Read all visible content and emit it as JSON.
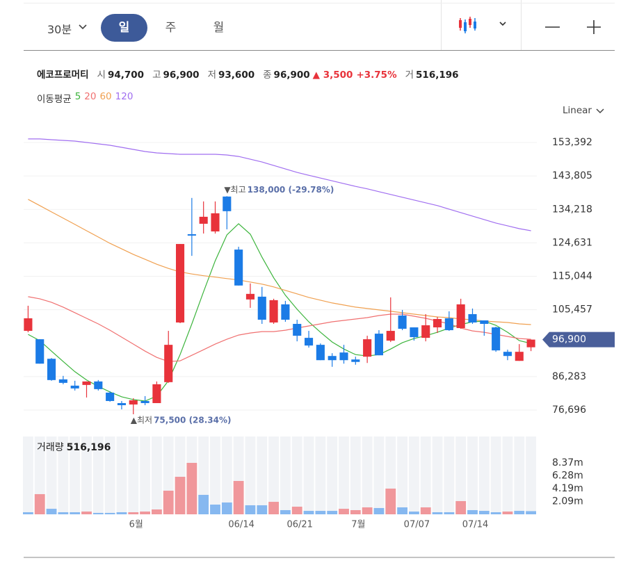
{
  "toolbar": {
    "interval": "30분",
    "tabs": [
      "일",
      "주",
      "월"
    ],
    "active_tab": 0
  },
  "quote": {
    "name": "에코프로머티",
    "items": [
      {
        "label": "시",
        "value": "94,700"
      },
      {
        "label": "고",
        "value": "96,900"
      },
      {
        "label": "저",
        "value": "93,600"
      },
      {
        "label": "종",
        "value": "96,900"
      }
    ],
    "change": "▲ 3,500",
    "change_rate": "+3.75%",
    "volume_label": "거",
    "volume": "516,196"
  },
  "ma_label": "이동평균",
  "scale_mode": "Linear",
  "chart_data": [
    {
      "type": "candlestick",
      "categories": [
        null,
        null,
        null,
        null,
        null,
        null,
        null,
        null,
        null,
        "6월",
        null,
        null,
        null,
        null,
        null,
        null,
        null,
        null,
        "06/14",
        null,
        null,
        null,
        null,
        "06/21",
        null,
        null,
        null,
        null,
        "7월",
        null,
        null,
        null,
        null,
        "07/07",
        null,
        null,
        null,
        null,
        "07/14",
        null,
        null,
        null,
        null,
        null
      ],
      "candles": {
        "up_color": "#e8333b",
        "down_color": "#1b7be6",
        "open": [
          99400,
          97000,
          91400,
          85500,
          83700,
          83900,
          84900,
          81700,
          78700,
          78300,
          79300,
          78700,
          84700,
          101800,
          127100,
          130100,
          127900,
          137900,
          122700,
          108400,
          109200,
          101800,
          107000,
          101400,
          97400,
          95400,
          92200,
          93200,
          91200,
          92000,
          98600,
          96600,
          103800,
          100400,
          97400,
          100400,
          103000,
          100200,
          104200,
          102400,
          100400,
          93400,
          90800,
          94700
        ],
        "high": [
          106600,
          97000,
          91600,
          86500,
          85100,
          84900,
          85300,
          82100,
          79300,
          80100,
          80700,
          84900,
          99400,
          124300,
          137500,
          136500,
          136500,
          138000,
          123500,
          113000,
          112000,
          108600,
          108000,
          102600,
          99400,
          95800,
          93000,
          95400,
          92000,
          98000,
          99600,
          109000,
          105400,
          100400,
          104200,
          103400,
          105000,
          108600,
          105800,
          102400,
          100600,
          94000,
          95600,
          96900
        ],
        "low": [
          99000,
          90000,
          85100,
          84100,
          82300,
          80300,
          82300,
          79100,
          76900,
          75500,
          78100,
          78700,
          84500,
          101600,
          120900,
          127300,
          127300,
          128500,
          112400,
          106000,
          101400,
          101400,
          102000,
          96400,
          94600,
          91000,
          89100,
          90000,
          89700,
          90200,
          92400,
          96200,
          99600,
          96600,
          96400,
          98800,
          99400,
          100000,
          101400,
          98000,
          93400,
          91000,
          90800,
          93600
        ],
        "close": [
          103000,
          90000,
          85300,
          84500,
          82900,
          84900,
          82700,
          79300,
          78100,
          79500,
          78700,
          84100,
          95400,
          124300,
          126700,
          132100,
          133100,
          133700,
          112400,
          110000,
          102600,
          108200,
          102600,
          98000,
          95200,
          91000,
          91000,
          91000,
          90500,
          97000,
          92400,
          99400,
          100000,
          97600,
          101000,
          102800,
          99600,
          107000,
          101800,
          101400,
          93800,
          92200,
          93400,
          96900
        ]
      },
      "series": [
        {
          "name": "5",
          "color": "#3cb43c",
          "values": [
            98400,
            96600,
            93600,
            90600,
            87700,
            85300,
            83500,
            81900,
            80500,
            79700,
            79300,
            80700,
            85100,
            92600,
            101400,
            110600,
            119500,
            126900,
            130100,
            127100,
            120500,
            114600,
            109600,
            105600,
            102000,
            99000,
            96200,
            94200,
            92600,
            92200,
            92600,
            94200,
            96000,
            97200,
            98000,
            99000,
            100200,
            101200,
            102000,
            102200,
            101000,
            99000,
            96600,
            95800
          ]
        },
        {
          "name": "20",
          "color": "#f07070",
          "values": [
            109200,
            108600,
            107600,
            106200,
            104600,
            103000,
            101400,
            99600,
            97600,
            95600,
            93600,
            91800,
            90600,
            90800,
            92400,
            94000,
            95600,
            97000,
            98200,
            98800,
            99200,
            99200,
            99600,
            100200,
            100800,
            101400,
            102000,
            102400,
            102800,
            103200,
            103800,
            104200,
            104200,
            103600,
            103000,
            102200,
            101400,
            100200,
            99400,
            99000,
            98400,
            97800,
            97200,
            97000
          ]
        },
        {
          "name": "60",
          "color": "#f0a050",
          "values": [
            137100,
            135300,
            133500,
            131700,
            129900,
            128100,
            126300,
            124500,
            122900,
            121300,
            119900,
            118500,
            117300,
            116300,
            115700,
            115200,
            114800,
            114400,
            114000,
            113400,
            112800,
            112000,
            111000,
            110000,
            109000,
            108200,
            107400,
            106800,
            106200,
            105800,
            105400,
            105000,
            104600,
            104200,
            103800,
            103400,
            103200,
            102800,
            102600,
            102200,
            102000,
            101800,
            101400,
            101200
          ]
        },
        {
          "name": "120",
          "color": "#a06ef0",
          "values": [
            154400,
            154400,
            154200,
            154000,
            153800,
            153400,
            153000,
            152600,
            152000,
            151400,
            150800,
            150400,
            150200,
            150000,
            150000,
            150000,
            150000,
            149800,
            149400,
            148600,
            147800,
            146800,
            145800,
            144800,
            144000,
            143200,
            142400,
            141600,
            140800,
            140100,
            139300,
            138500,
            137700,
            136900,
            136100,
            135300,
            134300,
            133300,
            132300,
            131300,
            130300,
            129500,
            128700,
            128100
          ]
        }
      ],
      "ylim": [
        72718,
        159370
      ],
      "yticks": [
        {
          "value": 76696,
          "label": "76,696"
        },
        {
          "value": 86283,
          "label": "86,283"
        },
        {
          "value": 105457,
          "label": "105,457"
        },
        {
          "value": 115044,
          "label": "115,044"
        },
        {
          "value": 124631,
          "label": "124,631"
        },
        {
          "value": 134218,
          "label": "134,218"
        },
        {
          "value": 143805,
          "label": "143,805"
        },
        {
          "value": 153392,
          "label": "153,392"
        }
      ],
      "grid": true,
      "current_price": {
        "value": 96900,
        "label": "96,900",
        "color": "#4a5f9a"
      },
      "annotations": [
        {
          "index": 17,
          "value": 138000,
          "marker": "▼최고",
          "label": "138,000 (-29.78%)",
          "position": "above"
        },
        {
          "index": 9,
          "value": 75500,
          "marker": "▲최저",
          "label": "75,500 (28.34%)",
          "position": "below"
        }
      ]
    },
    {
      "type": "bar",
      "title": "거래량",
      "latest_label": "516,196",
      "values": [
        340000,
        3280000,
        900000,
        340000,
        340000,
        450000,
        230000,
        230000,
        340000,
        340000,
        450000,
        790000,
        3840000,
        6100000,
        8360000,
        3160000,
        1580000,
        1920000,
        5420000,
        1470000,
        1470000,
        2030000,
        680000,
        1240000,
        560000,
        560000,
        560000,
        900000,
        680000,
        1130000,
        1020000,
        4180000,
        1130000,
        450000,
        1130000,
        340000,
        340000,
        2150000,
        680000,
        560000,
        340000,
        450000,
        560000,
        516196
      ],
      "colors": [
        "#86b8f0",
        "#f0979b",
        "#86b8f0",
        "#86b8f0",
        "#86b8f0",
        "#f0979b",
        "#86b8f0",
        "#86b8f0",
        "#86b8f0",
        "#f0979b",
        "#f0979b",
        "#f0979b",
        "#f0979b",
        "#f0979b",
        "#f0979b",
        "#86b8f0",
        "#86b8f0",
        "#86b8f0",
        "#f0979b",
        "#86b8f0",
        "#86b8f0",
        "#f0979b",
        "#86b8f0",
        "#f0979b",
        "#86b8f0",
        "#86b8f0",
        "#86b8f0",
        "#f0979b",
        "#f0979b",
        "#f0979b",
        "#86b8f0",
        "#f0979b",
        "#86b8f0",
        "#86b8f0",
        "#f0979b",
        "#86b8f0",
        "#86b8f0",
        "#f0979b",
        "#86b8f0",
        "#86b8f0",
        "#86b8f0",
        "#f0979b",
        "#86b8f0",
        "#86b8f0"
      ],
      "ylim": [
        0,
        12650000
      ],
      "yticks": [
        {
          "value": 2090000,
          "label": "2.09m"
        },
        {
          "value": 4190000,
          "label": "4.19m"
        },
        {
          "value": 6280000,
          "label": "6.28m"
        },
        {
          "value": 8370000,
          "label": "8.37m"
        }
      ]
    }
  ]
}
